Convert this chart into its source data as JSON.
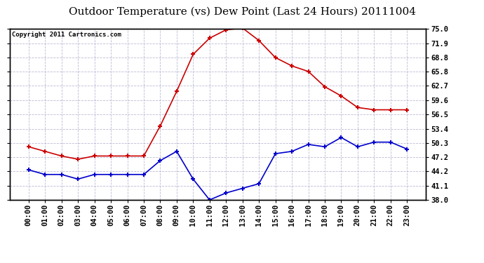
{
  "title": "Outdoor Temperature (vs) Dew Point (Last 24 Hours) 20111004",
  "copyright": "Copyright 2011 Cartronics.com",
  "x_labels": [
    "00:00",
    "01:00",
    "02:00",
    "03:00",
    "04:00",
    "05:00",
    "06:00",
    "07:00",
    "08:00",
    "09:00",
    "10:00",
    "11:00",
    "12:00",
    "13:00",
    "14:00",
    "15:00",
    "16:00",
    "17:00",
    "18:00",
    "19:00",
    "20:00",
    "21:00",
    "22:00",
    "23:00"
  ],
  "temp_red": [
    49.5,
    48.5,
    47.5,
    46.8,
    47.5,
    47.5,
    47.5,
    47.5,
    54.0,
    61.5,
    69.5,
    73.0,
    74.8,
    75.2,
    72.5,
    68.8,
    67.0,
    65.8,
    62.5,
    60.5,
    58.0,
    57.5,
    57.5,
    57.5
  ],
  "dew_blue": [
    44.5,
    43.5,
    43.5,
    42.5,
    43.5,
    43.5,
    43.5,
    43.5,
    46.5,
    48.5,
    42.5,
    38.0,
    39.5,
    40.5,
    41.5,
    48.0,
    48.5,
    50.0,
    49.5,
    51.5,
    49.5,
    50.5,
    50.5,
    49.0
  ],
  "ylim": [
    38.0,
    75.0
  ],
  "yticks": [
    38.0,
    41.1,
    44.2,
    47.2,
    50.3,
    53.4,
    56.5,
    59.6,
    62.7,
    65.8,
    68.8,
    71.9,
    75.0
  ],
  "bg_color": "#ffffff",
  "plot_bg": "#ffffff",
  "grid_color": "#aaaacc",
  "red_color": "#cc0000",
  "blue_color": "#0000cc",
  "title_fontsize": 11,
  "copyright_fontsize": 6.5,
  "tick_fontsize": 7.5
}
